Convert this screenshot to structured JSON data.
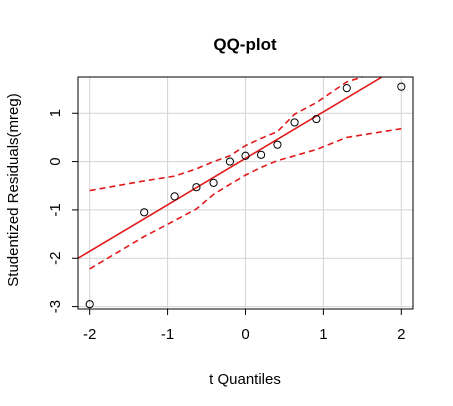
{
  "chart_data": {
    "type": "scatter",
    "title": "QQ-plot",
    "xlabel": "t Quantiles",
    "ylabel": "Studentized Residuals(mreg)",
    "xlim": [
      -2.15,
      2.15
    ],
    "ylim": [
      -3.05,
      1.75
    ],
    "x_ticks": [
      -2,
      -1,
      0,
      1,
      2
    ],
    "x_tick_labels": [
      "-2",
      "-1",
      "0",
      "1",
      "2"
    ],
    "y_ticks": [
      -3,
      -2,
      -1,
      0,
      1
    ],
    "y_tick_labels": [
      "-3",
      "-2",
      "-1",
      "0",
      "1"
    ],
    "grid": true,
    "points": {
      "x": [
        -2.0,
        -1.3,
        -0.91,
        -0.63,
        -0.41,
        -0.2,
        0.0,
        0.2,
        0.41,
        0.63,
        0.91,
        1.3,
        2.0
      ],
      "y": [
        -2.95,
        -1.05,
        -0.72,
        -0.53,
        -0.44,
        0.0,
        0.12,
        0.14,
        0.35,
        0.81,
        0.88,
        1.52,
        1.55
      ]
    },
    "reference_line": {
      "x": [
        -2.15,
        1.75
      ],
      "y": [
        -2.0,
        1.75
      ]
    },
    "confidence_band": {
      "upper": {
        "x": [
          -2.0,
          -1.3,
          -0.91,
          -0.63,
          -0.41,
          -0.2,
          0.0,
          0.2,
          0.41,
          0.63,
          0.91,
          1.3,
          1.5
        ],
        "y": [
          -0.6,
          -0.4,
          -0.3,
          -0.15,
          0.0,
          0.12,
          0.33,
          0.48,
          0.62,
          0.98,
          1.22,
          1.65,
          1.75
        ]
      },
      "lower": {
        "x": [
          -2.0,
          -1.3,
          -0.91,
          -0.63,
          -0.41,
          -0.2,
          0.0,
          0.2,
          0.41,
          0.63,
          0.91,
          1.3,
          2.0
        ],
        "y": [
          -2.22,
          -1.55,
          -1.22,
          -0.98,
          -0.68,
          -0.47,
          -0.28,
          -0.12,
          0.02,
          0.12,
          0.25,
          0.5,
          0.68
        ]
      }
    },
    "colors": {
      "line": "#e31a1c",
      "band": "#e31a1c",
      "points": "#000000",
      "grid": "#d3d3d3",
      "frame": "#000000"
    }
  }
}
